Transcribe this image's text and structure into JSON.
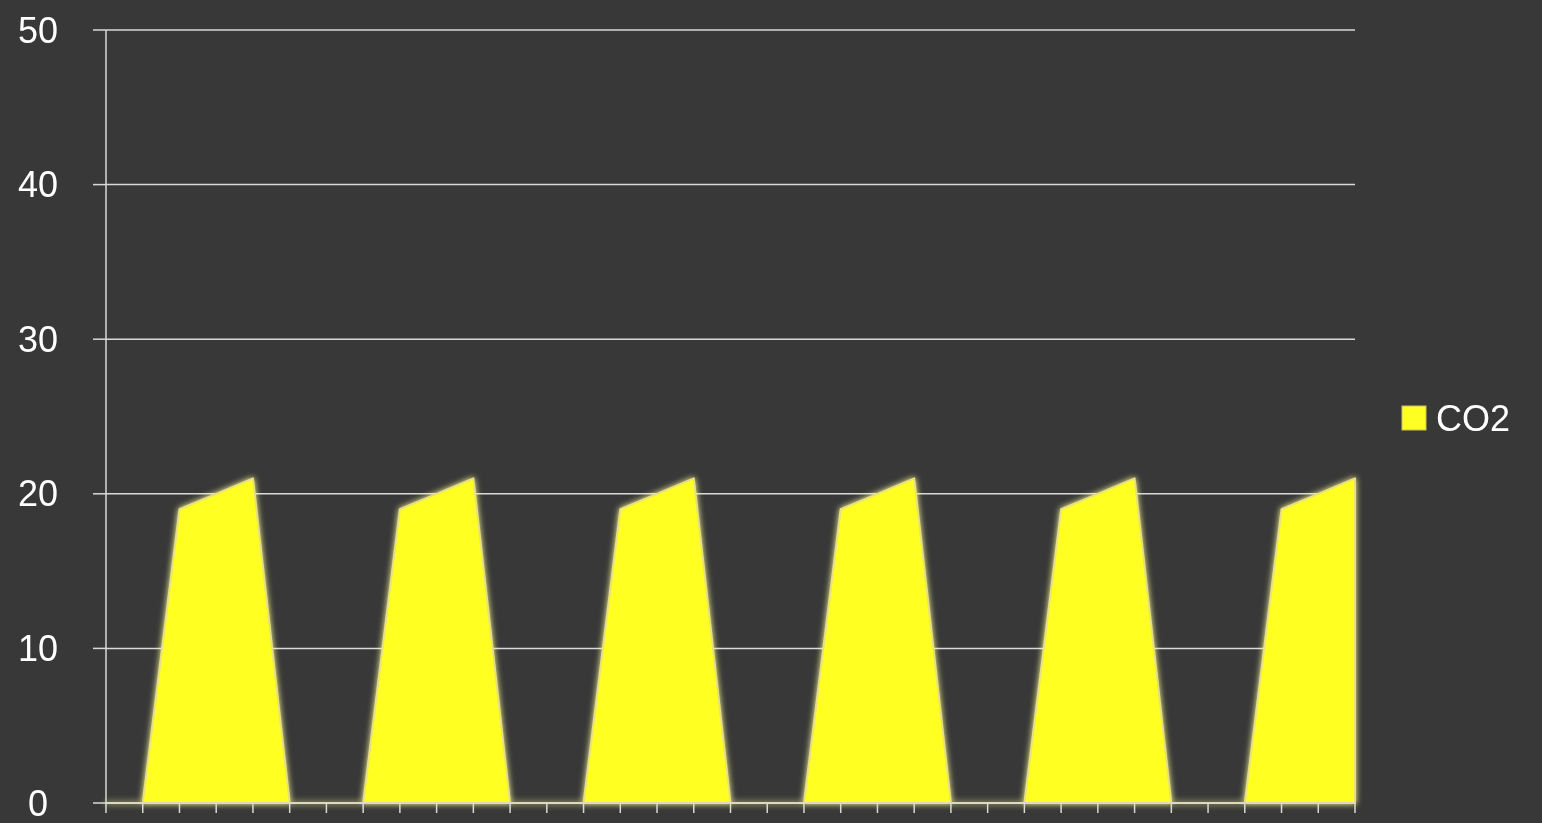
{
  "chart_data": {
    "type": "area",
    "categories": [
      null,
      null,
      null,
      null,
      null,
      null,
      null,
      null,
      null,
      null,
      null,
      null,
      null,
      null,
      null,
      null,
      null,
      null,
      null,
      null,
      null,
      null,
      null,
      null,
      null,
      null,
      null,
      null,
      null,
      null,
      null,
      null,
      null,
      null,
      null
    ],
    "series": [
      {
        "name": "CO2",
        "color": "#ffff22",
        "values": [
          0,
          0,
          19,
          20,
          21,
          0,
          0,
          0,
          19,
          20,
          21,
          0,
          0,
          0,
          19,
          20,
          21,
          0,
          0,
          0,
          19,
          20,
          21,
          0,
          0,
          0,
          19,
          20,
          21,
          0,
          0,
          0,
          19,
          20,
          21
        ]
      }
    ],
    "ylim": [
      0,
      50
    ],
    "yticks": [
      0,
      10,
      20,
      30,
      40,
      50
    ],
    "grid": "y",
    "legend": "right"
  }
}
